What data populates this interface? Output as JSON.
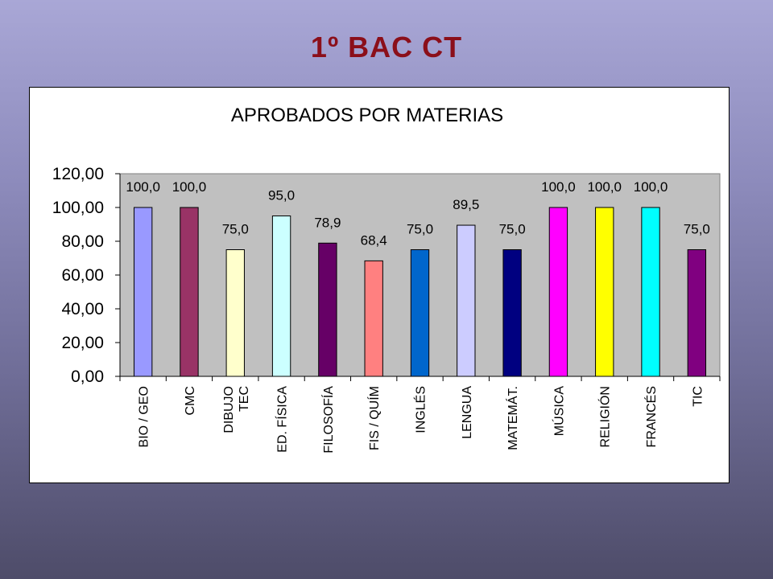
{
  "slide": {
    "title": "1º BAC CT"
  },
  "chart_data": {
    "type": "bar",
    "title": "APROBADOS POR MATERIAS",
    "xlabel": "",
    "ylabel": "",
    "ylim": [
      0,
      120
    ],
    "yticks": [
      0,
      20,
      40,
      60,
      80,
      100,
      120
    ],
    "ytick_labels": [
      "0,00",
      "20,00",
      "40,00",
      "60,00",
      "80,00",
      "100,00",
      "120,00"
    ],
    "grid": false,
    "legend": "none",
    "plot_background": "#c0c0c0",
    "categories": [
      [
        "BIO / GEO"
      ],
      [
        "CMC"
      ],
      [
        "DIBUJO",
        "TEC"
      ],
      [
        "ED. FÍSICA"
      ],
      [
        "FILOSOFÍA"
      ],
      [
        "FIS / QUÍM"
      ],
      [
        "INGLÉS"
      ],
      [
        "LENGUA"
      ],
      [
        "MATEMÁT."
      ],
      [
        "MÚSICA"
      ],
      [
        "RELIGIÓN"
      ],
      [
        "FRANCÉS"
      ],
      [
        "TIC"
      ]
    ],
    "values": [
      100.0,
      100.0,
      75.0,
      95.0,
      78.9,
      68.4,
      75.0,
      89.5,
      75.0,
      100.0,
      100.0,
      100.0,
      75.0
    ],
    "value_labels": [
      "100,0",
      "100,0",
      "75,0",
      "95,0",
      "78,9",
      "68,4",
      "75,0",
      "89,5",
      "75,0",
      "100,0",
      "100,0",
      "100,0",
      "75,0"
    ],
    "colors": [
      "#9999ff",
      "#993366",
      "#ffffcc",
      "#ccffff",
      "#660066",
      "#ff8080",
      "#0066cc",
      "#ccccff",
      "#000080",
      "#ff00ff",
      "#ffff00",
      "#00ffff",
      "#800080"
    ]
  }
}
